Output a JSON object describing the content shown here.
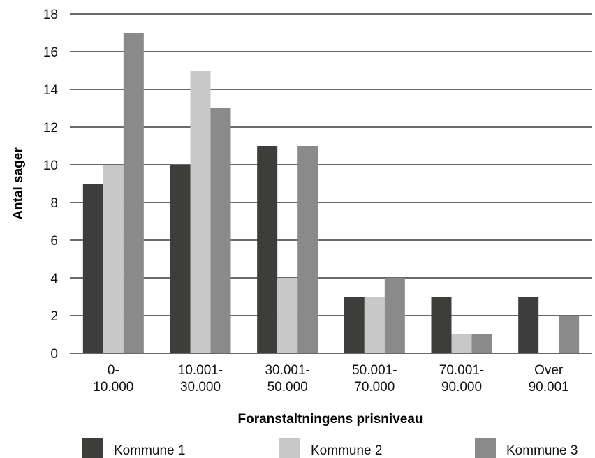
{
  "chart_data": {
    "type": "bar",
    "title": "",
    "xlabel": "Foranstaltningens prisniveau",
    "ylabel": "Antal sager",
    "ylim": [
      0,
      18
    ],
    "yticks": [
      0,
      2,
      4,
      6,
      8,
      10,
      12,
      14,
      16,
      18
    ],
    "grid": true,
    "legend_position": "bottom",
    "categories": [
      [
        "0-",
        "10.000"
      ],
      [
        "10.001-",
        "30.000"
      ],
      [
        "30.001-",
        "50.000"
      ],
      [
        "50.001-",
        "70.000"
      ],
      [
        "70.001-",
        "90.000"
      ],
      [
        "Over",
        "90.001"
      ]
    ],
    "series": [
      {
        "name": "Kommune 1",
        "color": "#3d3d3b",
        "values": [
          9,
          10,
          11,
          3,
          3,
          3
        ]
      },
      {
        "name": "Kommune 2",
        "color": "#c8c8c8",
        "values": [
          10,
          15,
          4,
          3,
          1,
          0
        ]
      },
      {
        "name": "Kommune 3",
        "color": "#8a8a8a",
        "values": [
          17,
          13,
          11,
          4,
          1,
          2
        ]
      }
    ]
  }
}
